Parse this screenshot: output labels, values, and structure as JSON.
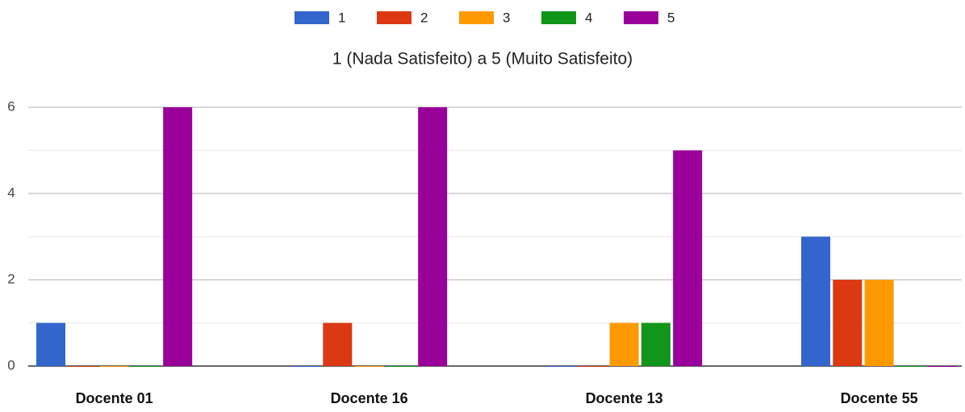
{
  "chart_data": {
    "type": "bar",
    "subtitle": "1 (Nada Satisfeito) a 5 (Muito Satisfeito)",
    "categories": [
      "Docente 01",
      "Docente 16",
      "Docente 13",
      "Docente 55"
    ],
    "series": [
      {
        "name": "1",
        "color": "#3366cc",
        "values": [
          1,
          0,
          0,
          3
        ]
      },
      {
        "name": "2",
        "color": "#dc3912",
        "values": [
          0,
          1,
          0,
          2
        ]
      },
      {
        "name": "3",
        "color": "#ff9900",
        "values": [
          0,
          0,
          1,
          2
        ]
      },
      {
        "name": "4",
        "color": "#109618",
        "values": [
          0,
          0,
          1,
          0
        ]
      },
      {
        "name": "5",
        "color": "#990099",
        "values": [
          6,
          6,
          5,
          0
        ]
      }
    ],
    "ylim": [
      0,
      6
    ],
    "yticks": [
      0,
      2,
      4,
      6
    ],
    "minor_yticks": [
      1,
      3,
      5
    ],
    "grid": true,
    "legend": "top"
  }
}
